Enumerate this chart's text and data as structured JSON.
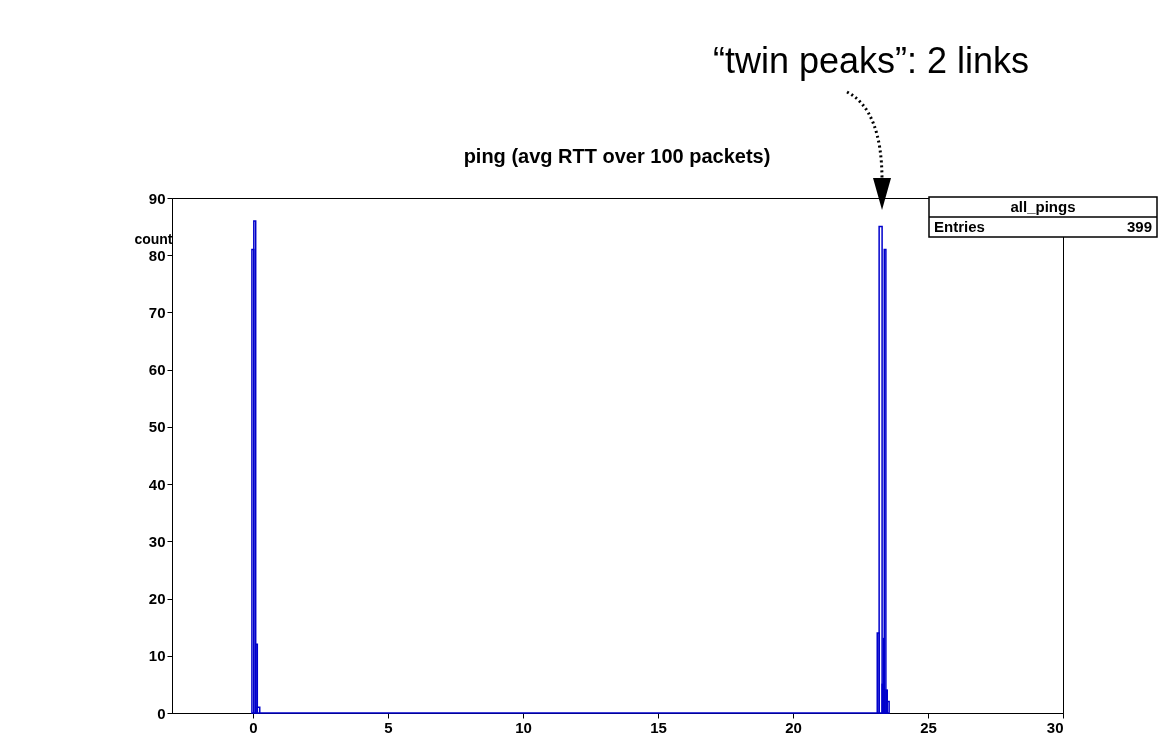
{
  "chart_data": {
    "type": "histogram",
    "title": "ping (avg RTT over 100 packets)",
    "ylabel": "count",
    "bins": [
      -0.04,
      0.03,
      0.1,
      0.16,
      0.25,
      23.12,
      23.19,
      23.3,
      23.35,
      23.38,
      23.44,
      23.49,
      23.56
    ],
    "values": [
      81,
      86,
      12,
      1,
      0,
      14,
      85,
      5,
      13,
      81,
      4,
      2
    ],
    "color": "#0000cc",
    "xlim": [
      -3,
      30
    ],
    "xticks": [
      0,
      5,
      10,
      15,
      20,
      25,
      30
    ],
    "ylim": [
      0,
      90
    ],
    "yticks": [
      0,
      10,
      20,
      30,
      40,
      50,
      60,
      70,
      80,
      90
    ],
    "grid": false,
    "annotations": [
      "“twin peaks”: 2 links",
      "all_pings",
      "Entries 399"
    ]
  }
}
